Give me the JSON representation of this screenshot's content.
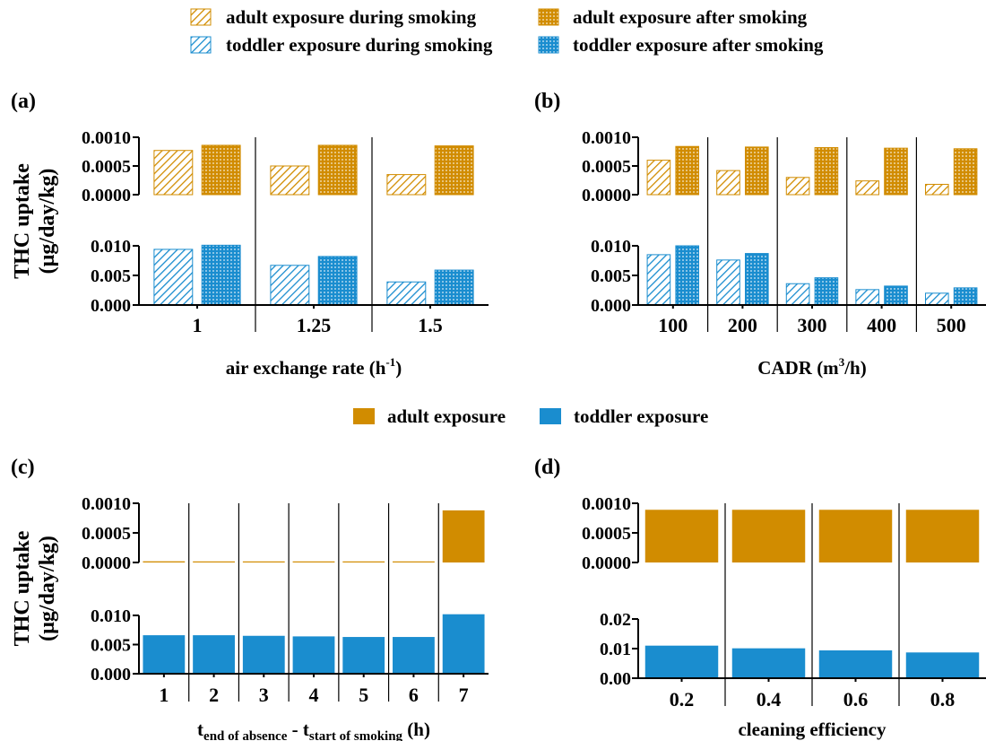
{
  "colors": {
    "adult": "#D18C00",
    "toddler": "#1A8DCF",
    "axis": "#000000"
  },
  "legend_top": {
    "items": [
      {
        "label": "adult exposure during smoking",
        "color": "#D18C00",
        "pattern": "hatch"
      },
      {
        "label": "adult exposure after smoking",
        "color": "#D18C00",
        "pattern": "grid"
      },
      {
        "label": "toddler exposure during smoking",
        "color": "#1A8DCF",
        "pattern": "hatch"
      },
      {
        "label": "toddler exposure after smoking",
        "color": "#1A8DCF",
        "pattern": "grid"
      }
    ]
  },
  "legend_middle": {
    "items": [
      {
        "label": "adult exposure",
        "color": "#D18C00"
      },
      {
        "label": "toddler exposure",
        "color": "#1A8DCF"
      }
    ]
  },
  "chart_data": [
    {
      "panel": "(a)",
      "type": "bar",
      "ylabel": [
        "THC uptake",
        "(µg/day/kg)"
      ],
      "xlabel": "air exchange rate (h-1)",
      "xlabel_parts": [
        {
          "text": "air exchange rate (h",
          "style": "normal"
        },
        {
          "text": "-1",
          "style": "sup"
        },
        {
          "text": ")",
          "style": "normal"
        }
      ],
      "categories": [
        "1",
        "1.25",
        "1.5"
      ],
      "upper": {
        "ylim": [
          0,
          0.001
        ],
        "ticks": [
          0,
          0.0005,
          0.001
        ],
        "tick_labels": [
          "0.0000",
          "0.0005",
          "0.0010"
        ],
        "series": [
          {
            "name": "adult exposure during smoking",
            "pattern": "hatch",
            "values": [
              0.00077,
              0.0005,
              0.00035
            ]
          },
          {
            "name": "adult exposure after smoking",
            "pattern": "grid",
            "values": [
              0.00086,
              0.00086,
              0.00085
            ]
          }
        ]
      },
      "lower": {
        "ylim": [
          0,
          0.01
        ],
        "ticks": [
          0,
          0.005,
          0.01
        ],
        "tick_labels": [
          "0.000",
          "0.005",
          "0.010"
        ],
        "series": [
          {
            "name": "toddler exposure during smoking",
            "pattern": "hatch",
            "values": [
              0.0094,
              0.0067,
              0.0039
            ]
          },
          {
            "name": "toddler exposure after smoking",
            "pattern": "grid",
            "values": [
              0.0101,
              0.0082,
              0.0059
            ]
          }
        ]
      }
    },
    {
      "panel": "(b)",
      "type": "bar",
      "xlabel": "CADR (m3/h)",
      "xlabel_parts": [
        {
          "text": "CADR (m",
          "style": "normal"
        },
        {
          "text": "3",
          "style": "sup"
        },
        {
          "text": "/h)",
          "style": "normal"
        }
      ],
      "categories": [
        "100",
        "200",
        "300",
        "400",
        "500"
      ],
      "upper": {
        "ylim": [
          0,
          0.001
        ],
        "ticks": [
          0,
          0.0005,
          0.001
        ],
        "tick_labels": [
          "0.0000",
          "0.0005",
          "0.0010"
        ],
        "series": [
          {
            "name": "adult exposure during smoking",
            "pattern": "hatch",
            "values": [
              0.0006,
              0.00042,
              0.0003,
              0.00024,
              0.00018
            ]
          },
          {
            "name": "adult exposure after smoking",
            "pattern": "grid",
            "values": [
              0.00084,
              0.00083,
              0.00082,
              0.00081,
              0.0008
            ]
          }
        ]
      },
      "lower": {
        "ylim": [
          0,
          0.01
        ],
        "ticks": [
          0,
          0.005,
          0.01
        ],
        "tick_labels": [
          "0.000",
          "0.005",
          "0.010"
        ],
        "series": [
          {
            "name": "toddler exposure during smoking",
            "pattern": "hatch",
            "values": [
              0.0085,
              0.0076,
              0.0036,
              0.0026,
              0.002
            ]
          },
          {
            "name": "toddler exposure after smoking",
            "pattern": "grid",
            "values": [
              0.01,
              0.0087,
              0.0046,
              0.0032,
              0.0029
            ]
          }
        ]
      }
    },
    {
      "panel": "(c)",
      "type": "bar",
      "ylabel": [
        "THC uptake",
        "(µg/day/kg)"
      ],
      "xlabel": "tend of absence - tstart of smoking (h)",
      "xlabel_parts": [
        {
          "text": "t",
          "style": "normal"
        },
        {
          "text": "end of absence",
          "style": "sub"
        },
        {
          "text": " - t",
          "style": "normal"
        },
        {
          "text": "start of smoking",
          "style": "sub"
        },
        {
          "text": " (h)",
          "style": "normal"
        }
      ],
      "categories": [
        "1",
        "2",
        "3",
        "4",
        "5",
        "6",
        "7"
      ],
      "upper": {
        "ylim": [
          0,
          0.001
        ],
        "ticks": [
          0,
          0.0005,
          0.001
        ],
        "tick_labels": [
          "0.0000",
          "0.0005",
          "0.0010"
        ],
        "series": [
          {
            "name": "adult exposure",
            "pattern": "solid",
            "values": [
              2e-05,
              1e-05,
              1e-05,
              1e-05,
              1e-05,
              1e-05,
              0.00088
            ]
          }
        ]
      },
      "lower": {
        "ylim": [
          0,
          0.01
        ],
        "ticks": [
          0,
          0.005,
          0.01
        ],
        "tick_labels": [
          "0.000",
          "0.005",
          "0.010"
        ],
        "series": [
          {
            "name": "toddler exposure",
            "pattern": "solid",
            "values": [
              0.0066,
              0.0066,
              0.0065,
              0.0064,
              0.0063,
              0.0063,
              0.0102
            ]
          }
        ]
      }
    },
    {
      "panel": "(d)",
      "type": "bar",
      "xlabel": "cleaning efficiency",
      "xlabel_parts": [
        {
          "text": "cleaning efficiency",
          "style": "normal"
        }
      ],
      "categories": [
        "0.2",
        "0.4",
        "0.6",
        "0.8"
      ],
      "upper": {
        "ylim": [
          0,
          0.001
        ],
        "ticks": [
          0,
          0.0005,
          0.001
        ],
        "tick_labels": [
          "0.0000",
          "0.0005",
          "0.0010"
        ],
        "series": [
          {
            "name": "adult exposure",
            "pattern": "solid",
            "values": [
              0.00089,
              0.00089,
              0.00089,
              0.00089
            ]
          }
        ]
      },
      "lower": {
        "ylim": [
          0,
          0.02
        ],
        "ticks": [
          0,
          0.01,
          0.02
        ],
        "tick_labels": [
          "0.00",
          "0.01",
          "0.02"
        ],
        "series": [
          {
            "name": "toddler exposure",
            "pattern": "solid",
            "values": [
              0.011,
              0.0101,
              0.0094,
              0.0087
            ]
          }
        ]
      }
    }
  ]
}
